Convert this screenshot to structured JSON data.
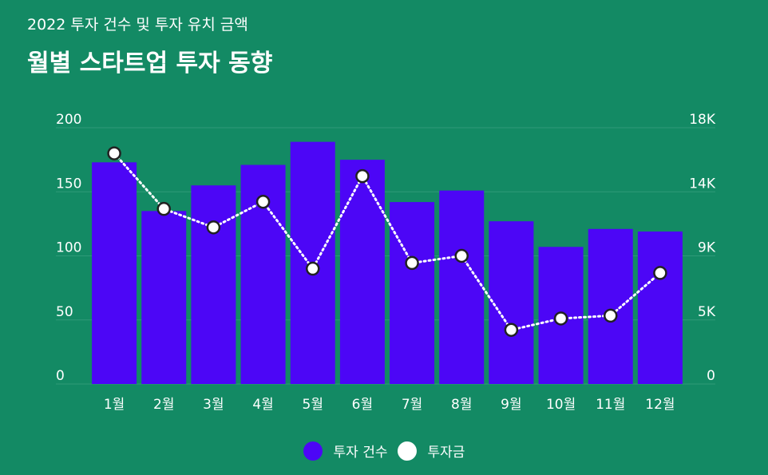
{
  "header": {
    "subtitle": "2022 투자 건수 및 투자 유치 금액",
    "title": "월별 스타트업 투자 동향"
  },
  "colors": {
    "background": "#138a64",
    "bar": "#4c06f6",
    "line": "#ffffff",
    "marker_stroke": "#222222",
    "grid": "#2f9a78"
  },
  "chart_data": {
    "type": "bar",
    "categories": [
      "1월",
      "2월",
      "3월",
      "4월",
      "5월",
      "6월",
      "7월",
      "8월",
      "9월",
      "10월",
      "11월",
      "12월"
    ],
    "series": [
      {
        "name": "투자 건수",
        "type": "bar",
        "axis": "left",
        "values": [
          173,
          135,
          155,
          171,
          189,
          175,
          142,
          151,
          127,
          107,
          121,
          119
        ]
      },
      {
        "name": "투자금",
        "type": "line",
        "axis": "right",
        "values": [
          16200,
          12300,
          11000,
          12800,
          8100,
          14600,
          8500,
          9000,
          3800,
          4600,
          4800,
          7800
        ]
      }
    ],
    "y_left": {
      "ylim": [
        0,
        200
      ],
      "ticks": [
        "0",
        "50",
        "100",
        "150",
        "200"
      ]
    },
    "y_right": {
      "ylim": [
        0,
        18000
      ],
      "ticks": [
        "0",
        "5K",
        "9K",
        "14K",
        "18K"
      ]
    },
    "grid": true,
    "legend_position": "bottom-center"
  }
}
